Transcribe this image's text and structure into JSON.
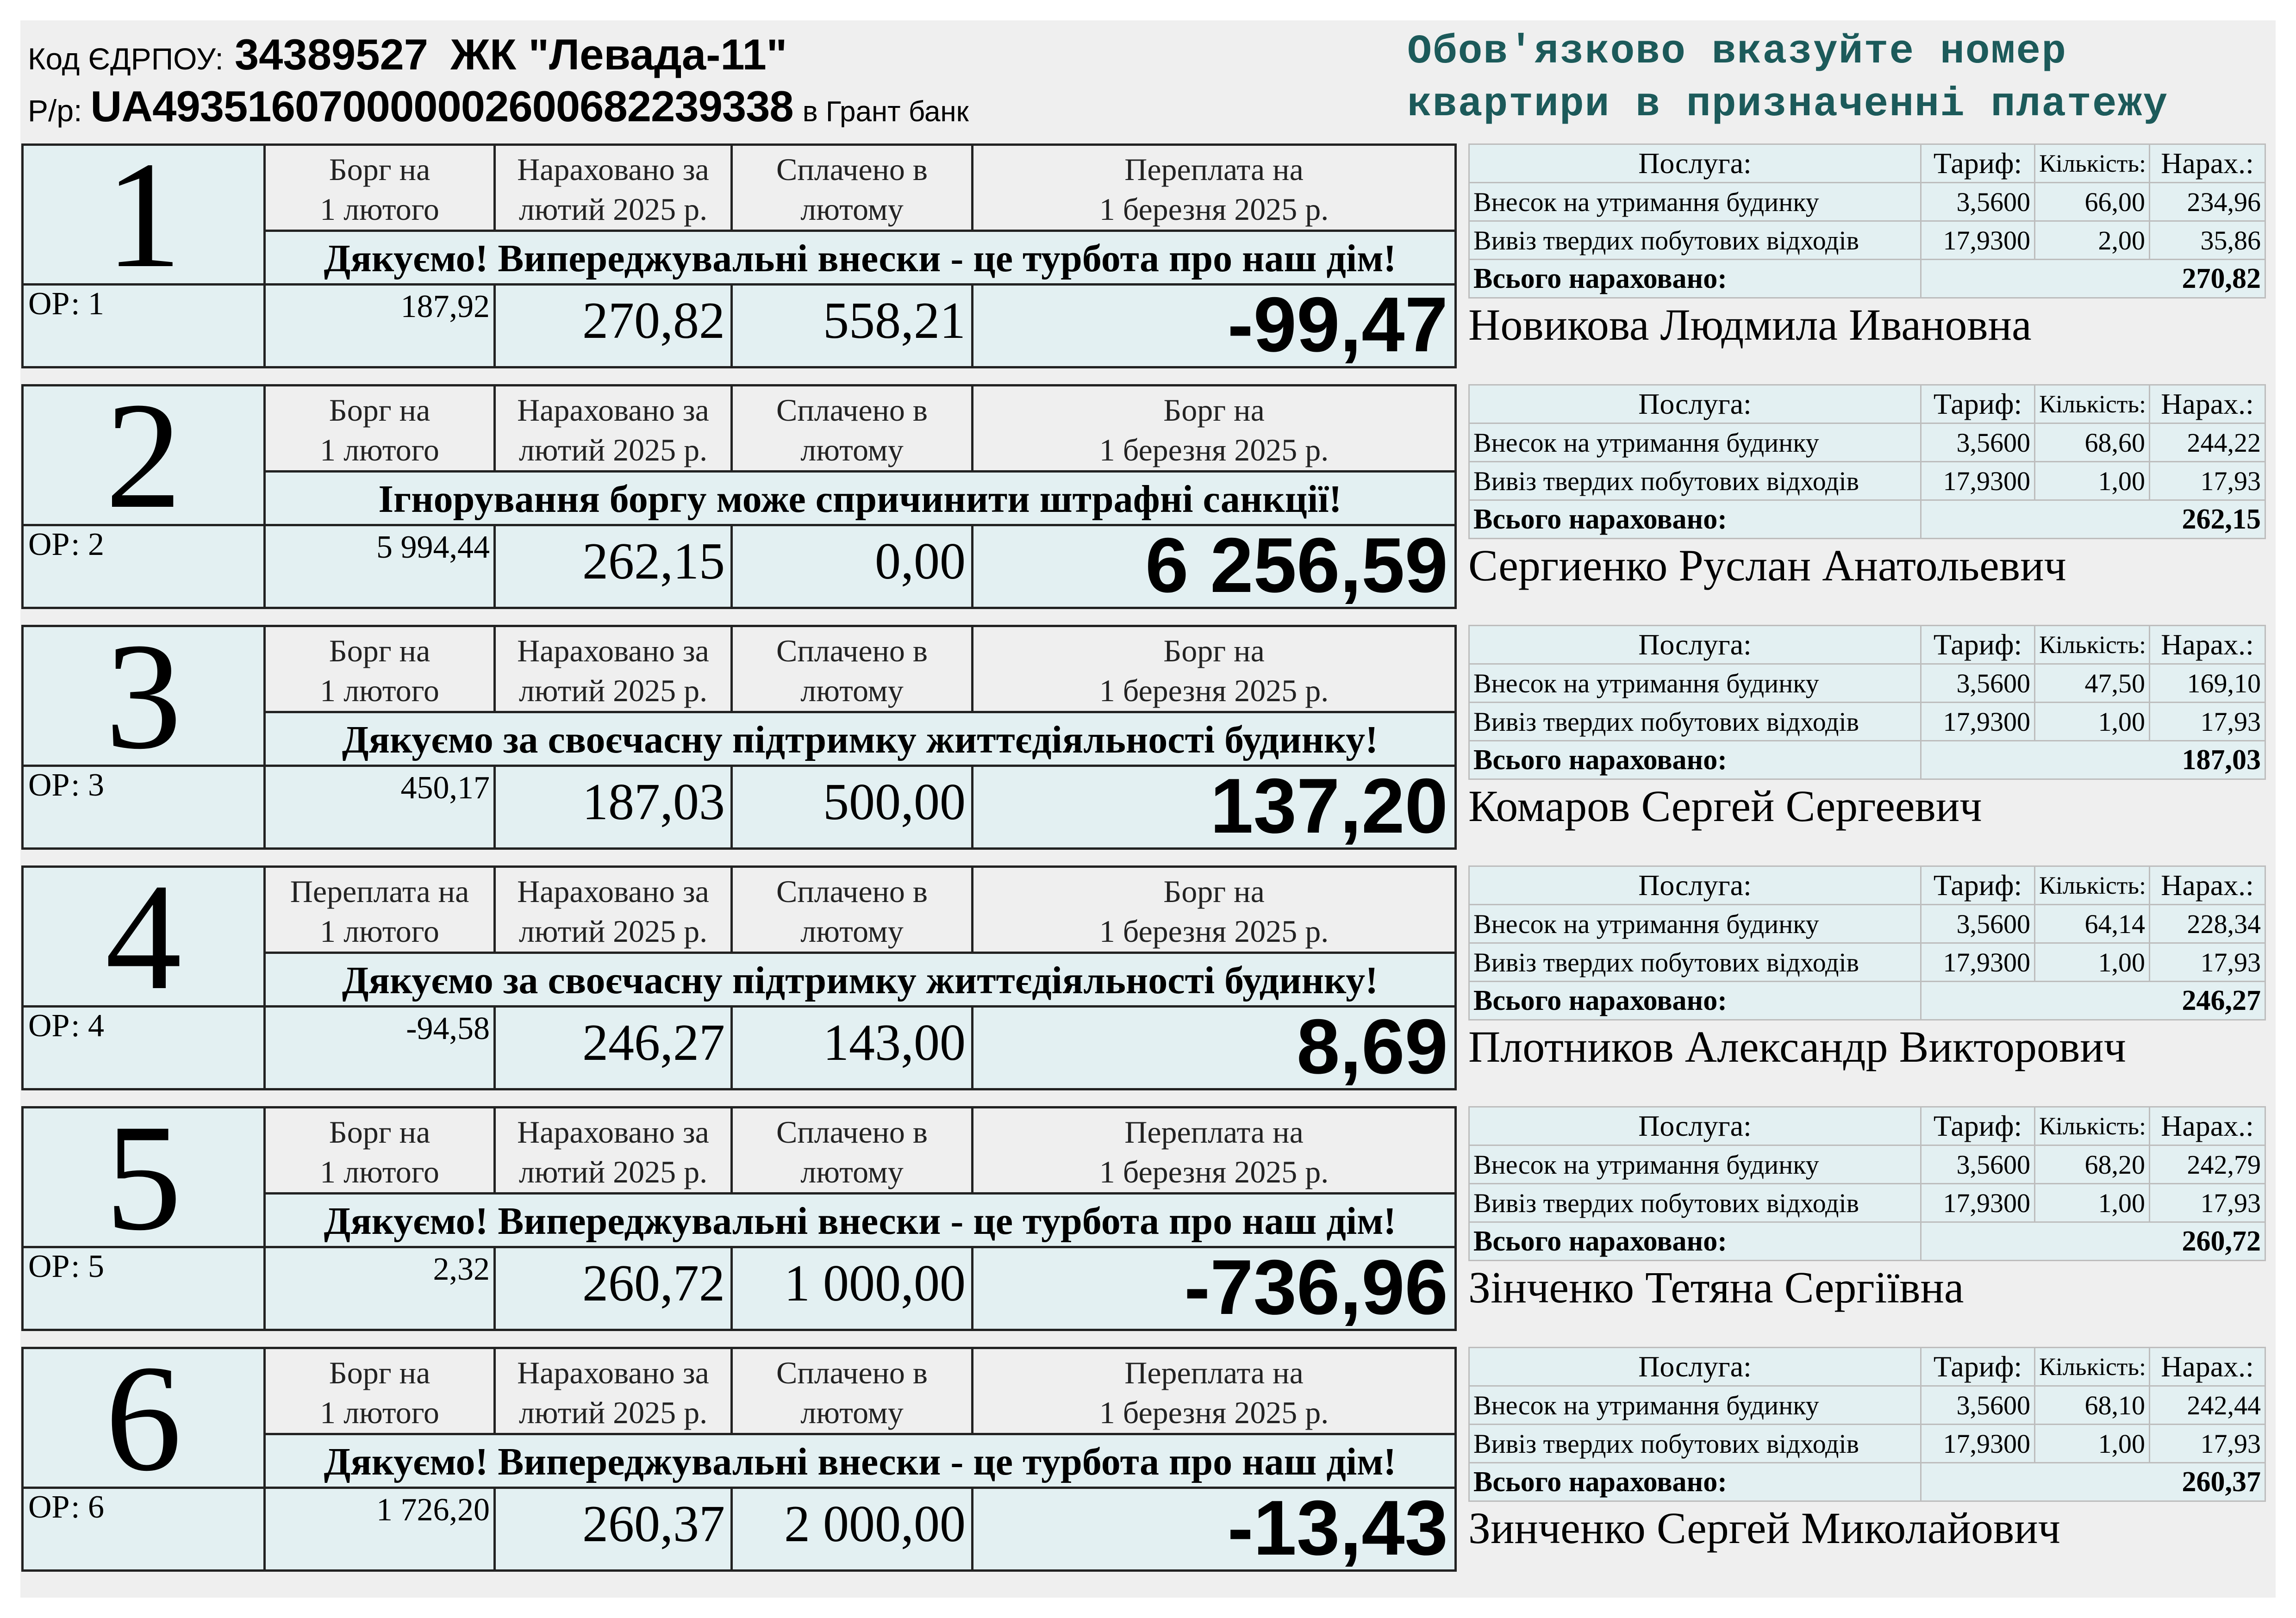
{
  "header": {
    "code_label": "Код ЄДРПОУ:",
    "code_value": "34389527",
    "complex_name": "ЖК \"Левада-11\"",
    "account_label": "Р/р:",
    "account_value": "UA493516070000002600682239338",
    "bank": "в Грант банк"
  },
  "notice": "Обов'язково вказуйте номер квартири в призначенні платежу",
  "labels": {
    "accrued": "Нараховано за лютий 2025 р.",
    "paid": "Сплачено в лютому",
    "service": "Послуга:",
    "tariff": "Тариф:",
    "quantity": "Кількість:",
    "charge": "Нарах.:",
    "service_maintenance": "Внесок на утримання будинку",
    "service_waste": "Вивіз твердих побутових відходів",
    "total": "Всього нараховано:"
  },
  "receipts": [
    {
      "apartment": "1",
      "or": "ОР: 1",
      "start_label": "Борг на 1 лютого",
      "end_label": "Переплата на 1 березня 2025 р.",
      "message": "Дякуємо! Випереджувальні внески - це турбота про наш дім!",
      "start": "187,92",
      "accrued": "270,82",
      "paid": "558,21",
      "end": "-99,47",
      "rows": [
        {
          "tariff": "3,5600",
          "qty": "66,00",
          "sum": "234,96"
        },
        {
          "tariff": "17,9300",
          "qty": "2,00",
          "sum": "35,86"
        }
      ],
      "total": "270,82",
      "owner": "Новикова Людмила Ивановна"
    },
    {
      "apartment": "2",
      "or": "ОР: 2",
      "start_label": "Борг на 1 лютого",
      "end_label": "Борг на 1 березня 2025 р.",
      "message": "Ігнорування боргу може спричинити штрафні санкції!",
      "start": "5 994,44",
      "accrued": "262,15",
      "paid": "0,00",
      "end": "6 256,59",
      "rows": [
        {
          "tariff": "3,5600",
          "qty": "68,60",
          "sum": "244,22"
        },
        {
          "tariff": "17,9300",
          "qty": "1,00",
          "sum": "17,93"
        }
      ],
      "total": "262,15",
      "owner": "Сергиенко Руслан Анатольевич"
    },
    {
      "apartment": "3",
      "or": "ОР: 3",
      "start_label": "Борг на 1 лютого",
      "end_label": "Борг на 1 березня 2025 р.",
      "message": "Дякуємо за своєчасну підтримку життєдіяльності будинку!",
      "start": "450,17",
      "accrued": "187,03",
      "paid": "500,00",
      "end": "137,20",
      "rows": [
        {
          "tariff": "3,5600",
          "qty": "47,50",
          "sum": "169,10"
        },
        {
          "tariff": "17,9300",
          "qty": "1,00",
          "sum": "17,93"
        }
      ],
      "total": "187,03",
      "owner": "Комаров Сергей Сергеевич"
    },
    {
      "apartment": "4",
      "or": "ОР: 4",
      "start_label": "Переплата на 1 лютого",
      "end_label": "Борг на 1 березня 2025 р.",
      "message": "Дякуємо за своєчасну підтримку життєдіяльності будинку!",
      "start": "-94,58",
      "accrued": "246,27",
      "paid": "143,00",
      "end": "8,69",
      "rows": [
        {
          "tariff": "3,5600",
          "qty": "64,14",
          "sum": "228,34"
        },
        {
          "tariff": "17,9300",
          "qty": "1,00",
          "sum": "17,93"
        }
      ],
      "total": "246,27",
      "owner": "Плотников Александр Викторович"
    },
    {
      "apartment": "5",
      "or": "ОР: 5",
      "start_label": "Борг на 1 лютого",
      "end_label": "Переплата на 1 березня 2025 р.",
      "message": "Дякуємо! Випереджувальні внески - це турбота про наш дім!",
      "start": "2,32",
      "accrued": "260,72",
      "paid": "1 000,00",
      "end": "-736,96",
      "rows": [
        {
          "tariff": "3,5600",
          "qty": "68,20",
          "sum": "242,79"
        },
        {
          "tariff": "17,9300",
          "qty": "1,00",
          "sum": "17,93"
        }
      ],
      "total": "260,72",
      "owner": "Зінченко Тетяна Сергіївна"
    },
    {
      "apartment": "6",
      "or": "ОР: 6",
      "start_label": "Борг на 1 лютого",
      "end_label": "Переплата на 1 березня 2025 р.",
      "message": "Дякуємо! Випереджувальні внески - це турбота про наш дім!",
      "start": "1 726,20",
      "accrued": "260,37",
      "paid": "2 000,00",
      "end": "-13,43",
      "rows": [
        {
          "tariff": "3,5600",
          "qty": "68,10",
          "sum": "242,44"
        },
        {
          "tariff": "17,9300",
          "qty": "1,00",
          "sum": "17,93"
        }
      ],
      "total": "260,37",
      "owner": "Зинченко Сергей Миколайович"
    }
  ]
}
